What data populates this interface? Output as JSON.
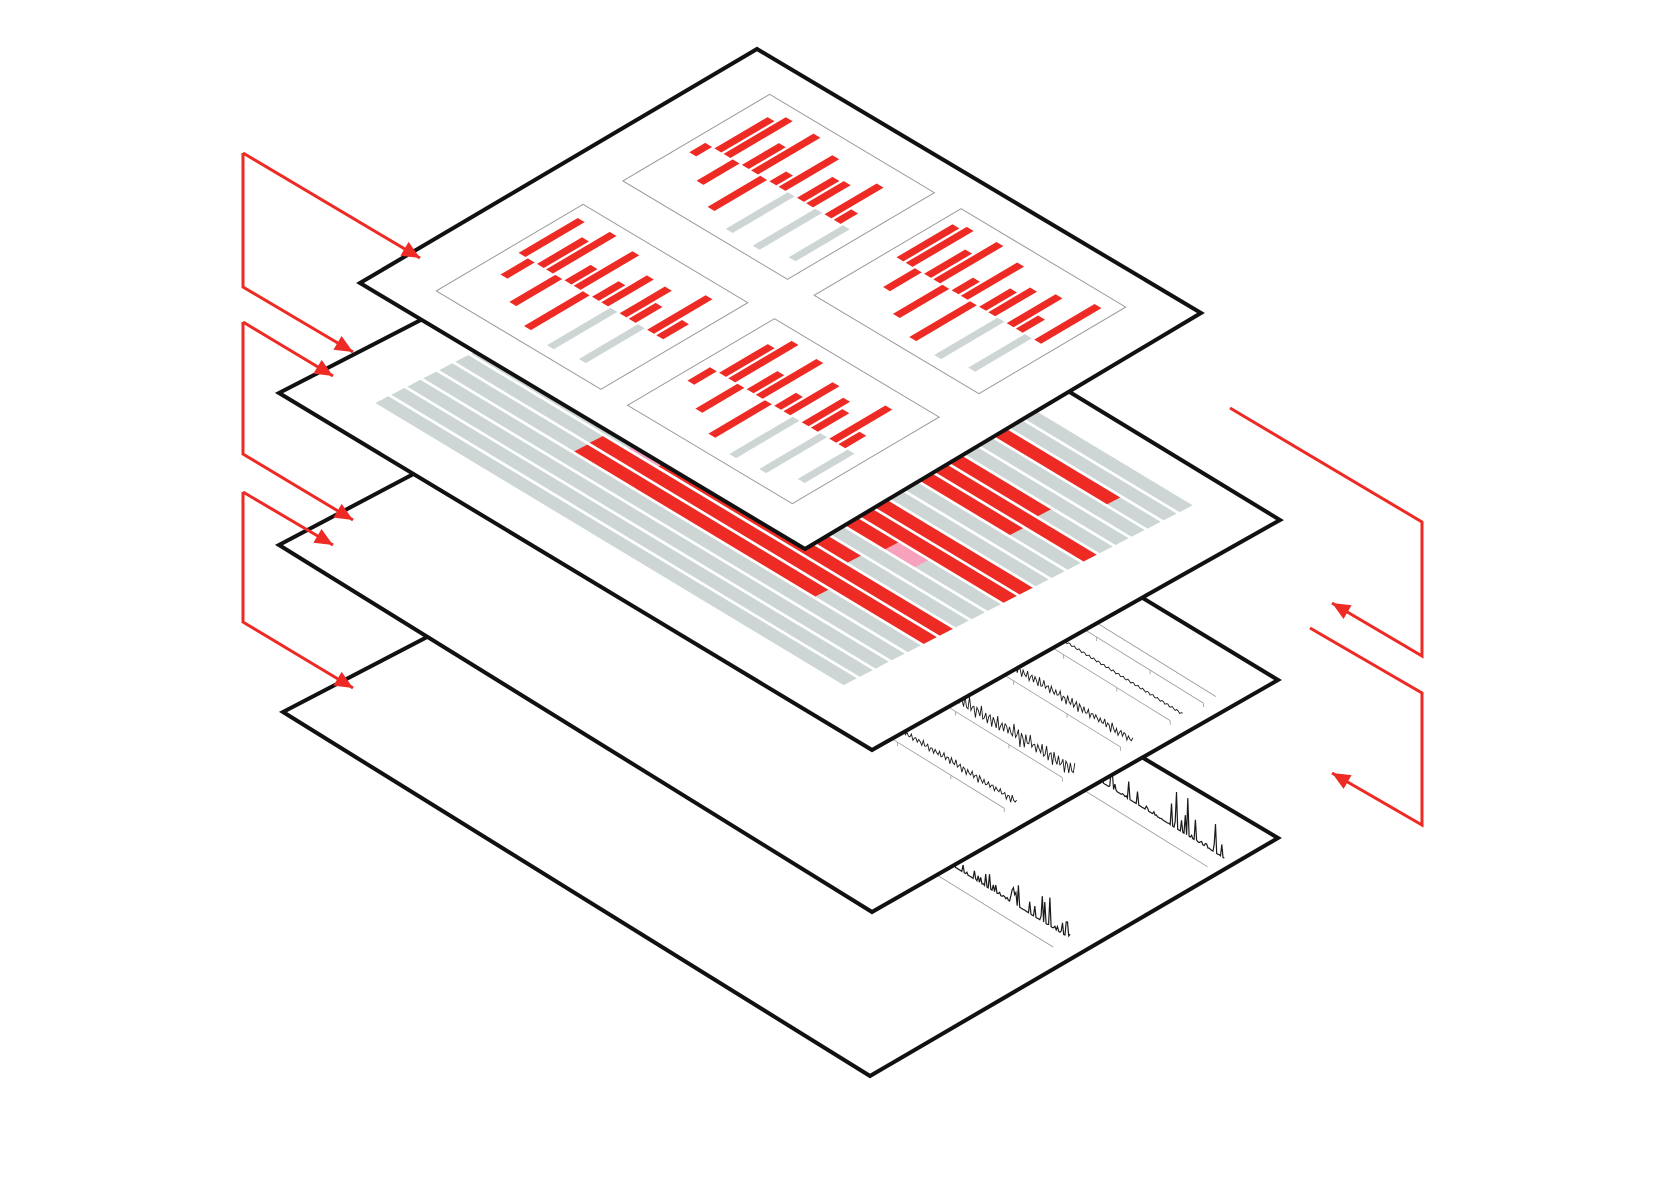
{
  "diagram": {
    "layers": [
      {
        "id": "layer-4",
        "content": "trace-peaks"
      },
      {
        "id": "layer-3",
        "content": "waveforms"
      },
      {
        "id": "layer-2",
        "content": "red-bar-grid"
      },
      {
        "id": "layer-1",
        "content": "small-multiples"
      }
    ],
    "arrows": {
      "left": 3,
      "right": 2
    },
    "small_multiples": {
      "panels": 4
    }
  },
  "colors": {
    "frame": "#111111",
    "accent_red": "#ee2a24",
    "pink": "#f7a1bd",
    "light_gray": "#cdd6d5",
    "trace": "#1a1a1a",
    "guide": "#9a9a9a"
  }
}
